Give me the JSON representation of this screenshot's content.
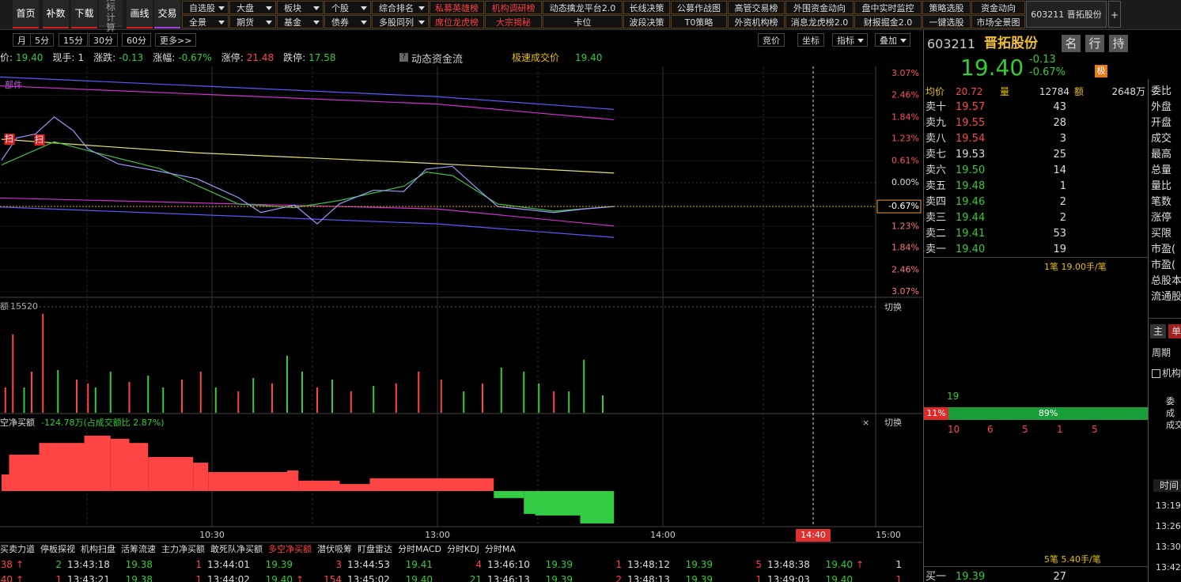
{
  "toolbar": {
    "buttons": [
      "首页",
      "补数",
      "下载",
      "指标计算",
      "画线",
      "交易"
    ],
    "menu_row1": [
      {
        "text": "自选股",
        "dropdown": true,
        "color": "#ddd"
      },
      {
        "text": "大盘",
        "dropdown": true,
        "color": "#ddd"
      },
      {
        "text": "板块",
        "dropdown": true,
        "color": "#ddd"
      },
      {
        "text": "个股",
        "dropdown": true,
        "color": "#ddd"
      },
      {
        "text": "综合排名",
        "dropdown": true,
        "color": "#ddd"
      },
      {
        "text": "私募英雄榜",
        "dropdown": false,
        "color": "#ff4040"
      },
      {
        "text": "机构调研榜",
        "dropdown": false,
        "color": "#ff4040"
      },
      {
        "text": "动态擒龙平台2.0",
        "dropdown": false,
        "color": "#ddd"
      },
      {
        "text": "长线决策",
        "dropdown": false,
        "color": "#ddd"
      },
      {
        "text": "公募作战图",
        "dropdown": false,
        "color": "#ddd"
      },
      {
        "text": "高管交易榜",
        "dropdown": false,
        "color": "#ddd"
      },
      {
        "text": "外围资金动向",
        "dropdown": false,
        "color": "#ddd"
      },
      {
        "text": "盘中实时监控",
        "dropdown": false,
        "color": "#ddd"
      },
      {
        "text": "策略选股",
        "dropdown": false,
        "color": "#ddd"
      },
      {
        "text": "资金动向",
        "dropdown": false,
        "color": "#ddd"
      }
    ],
    "menu_row2": [
      {
        "text": "全景",
        "dropdown": true,
        "color": "#ddd"
      },
      {
        "text": "期货",
        "dropdown": true,
        "color": "#ddd"
      },
      {
        "text": "基金",
        "dropdown": true,
        "color": "#ddd"
      },
      {
        "text": "债券",
        "dropdown": true,
        "color": "#ddd"
      },
      {
        "text": "多股同列",
        "dropdown": true,
        "color": "#ddd"
      },
      {
        "text": "席位龙虎榜",
        "dropdown": false,
        "color": "#ff4040"
      },
      {
        "text": "大宗揭秘",
        "dropdown": false,
        "color": "#ff4040"
      },
      {
        "text": "卡位",
        "dropdown": false,
        "color": "#ddd"
      },
      {
        "text": "波段决策",
        "dropdown": false,
        "color": "#ddd"
      },
      {
        "text": "T0策略",
        "dropdown": false,
        "color": "#ddd"
      },
      {
        "text": "外资机构榜",
        "dropdown": false,
        "color": "#ddd"
      },
      {
        "text": "消息龙虎榜2.0",
        "dropdown": false,
        "color": "#ddd"
      },
      {
        "text": "财报掘金2.0",
        "dropdown": false,
        "color": "#ddd"
      },
      {
        "text": "一键选股",
        "dropdown": false,
        "color": "#ddd"
      },
      {
        "text": "市场全景图",
        "dropdown": false,
        "color": "#ddd"
      }
    ],
    "stock_tab": "603211 晋拓股份",
    "add": "+"
  },
  "periods": [
    "月",
    "5分",
    "15分",
    "30分",
    "60分",
    "更多>>"
  ],
  "chart_tools": [
    "竞价",
    "坐标",
    "指标",
    "叠加"
  ],
  "info": {
    "items": [
      {
        "label": "价:",
        "value": "19.40",
        "color": "#33cc33"
      },
      {
        "label": "现手:",
        "value": "1",
        "color": "#dddddd"
      },
      {
        "label": "涨跌:",
        "value": "-0.13",
        "color": "#33cc33"
      },
      {
        "label": "涨幅:",
        "value": "-0.67%",
        "color": "#33cc33"
      },
      {
        "label": "涨停:",
        "value": "21.48",
        "color": "#ff4444"
      },
      {
        "label": "跌停:",
        "value": "17.58",
        "color": "#33cc33"
      }
    ],
    "fund_flow": "动态资金流",
    "fast_label": "极速成交价",
    "fast_value": "19.40"
  },
  "chart_data": [
    {
      "type": "line",
      "label": "部件",
      "xlim": [
        0,
        240
      ],
      "ylim": [
        -3.07,
        3.07
      ],
      "xticks": [
        {
          "value": 60,
          "label": "10:30"
        },
        {
          "value": 120,
          "label": "13:00"
        },
        {
          "value": 180,
          "label": "14:00"
        },
        {
          "value": 240,
          "label": "15:00"
        }
      ],
      "cursor": {
        "value": 220,
        "label": "14:40"
      },
      "yticks": [
        {
          "value": 3.07,
          "label": "3.07%"
        },
        {
          "value": 2.46,
          "label": "2.46%"
        },
        {
          "value": 1.84,
          "label": "1.84%"
        },
        {
          "value": 1.23,
          "label": "1.23%"
        },
        {
          "value": 0.61,
          "label": "0.61%"
        },
        {
          "value": 0,
          "label": "0.00%"
        },
        {
          "value": -1.23,
          "label": "1.23%"
        },
        {
          "value": -1.84,
          "label": "1.84%"
        },
        {
          "value": -2.46,
          "label": "2.46%"
        },
        {
          "value": -3.07,
          "label": "3.07%"
        }
      ],
      "current": {
        "value": -0.67,
        "label": "-0.67%"
      },
      "series": [
        {
          "color": "#5a5aff",
          "x": [
            0,
            120,
            167
          ],
          "values": [
            2.99,
            2.42,
            2.06
          ]
        },
        {
          "color": "#d030d0",
          "x": [
            0,
            120,
            167
          ],
          "values": [
            2.74,
            2.21,
            1.77
          ]
        },
        {
          "color": "#d030d0",
          "x": [
            0,
            120,
            167
          ],
          "values": [
            -0.42,
            -0.74,
            -1.22
          ]
        },
        {
          "color": "#5a5aff",
          "x": [
            0,
            120,
            167
          ],
          "values": [
            -0.67,
            -1.16,
            -1.54
          ]
        },
        {
          "color": "#e8e070",
          "x": [
            4,
            56,
            117,
            167
          ],
          "values": [
            1.22,
            0.84,
            0.55,
            0.27
          ]
        },
        {
          "color": "#40c040",
          "x": [
            4,
            18,
            27,
            46,
            67,
            82,
            94,
            111,
            117,
            124,
            136,
            151,
            167
          ],
          "values": [
            0.5,
            1.15,
            0.9,
            0.4,
            -0.6,
            -0.7,
            -0.5,
            -0.1,
            0.3,
            0.2,
            -0.6,
            -0.8,
            -0.67
          ]
        },
        {
          "color": "#9a9aff",
          "x": [
            4,
            8,
            13,
            18,
            23,
            27,
            35,
            46,
            56,
            67,
            73,
            82,
            88,
            94,
            103,
            111,
            117,
            124,
            130,
            136,
            151,
            159,
            167
          ],
          "values": [
            0.63,
            1.26,
            1.37,
            1.85,
            1.47,
            0.95,
            0.53,
            0.32,
            0.11,
            -0.42,
            -0.84,
            -0.63,
            -1.16,
            -0.59,
            -0.21,
            -0.25,
            0.38,
            0.46,
            -0.11,
            -0.67,
            -0.84,
            -0.74,
            -0.67
          ]
        }
      ],
      "markers": [
        {
          "x": 6,
          "value": 1.22,
          "label": "扫"
        },
        {
          "x": 14,
          "value": 1.2,
          "label": "扫"
        }
      ]
    },
    {
      "type": "bar",
      "label": "额",
      "switch": "切换",
      "ylim": [
        0,
        15520
      ],
      "yticks": [
        15520
      ],
      "x": [
        5,
        7,
        10,
        12,
        15,
        19,
        24,
        27,
        29,
        33,
        38,
        43,
        47,
        52,
        57,
        61,
        67,
        71,
        76,
        80,
        84,
        88,
        92,
        97,
        103,
        109,
        115,
        121,
        127,
        132,
        137,
        143,
        147,
        151,
        155,
        159,
        164
      ],
      "values": [
        3712,
        11484,
        3712,
        6032,
        14500,
        6264,
        4872,
        4292,
        3712,
        6032,
        4524,
        5452,
        3712,
        4872,
        6032,
        3712,
        3132,
        5104,
        4292,
        8352,
        6032,
        3712,
        4872,
        3132,
        3944,
        4292,
        6032,
        4872,
        3132,
        4292,
        6612,
        6032,
        4292,
        3132,
        3132,
        7772,
        2552
      ],
      "colors": [
        "#ff4444",
        "#ff4444",
        "#33cc44",
        "#ff4444",
        "#ff4444",
        "#33cc44",
        "#ff4444",
        "#ff4444",
        "#33cc44",
        "#33cc44",
        "#ff4444",
        "#33cc44",
        "#33cc44",
        "#ff4444",
        "#ff4444",
        "#33cc44",
        "#ff4444",
        "#33cc44",
        "#ff4444",
        "#33cc44",
        "#33cc44",
        "#ff4444",
        "#33cc44",
        "#ff4444",
        "#33cc44",
        "#ff4444",
        "#ff4444",
        "#ff4444",
        "#33cc44",
        "#ff4444",
        "#33cc44",
        "#33cc44",
        "#33cc44",
        "#ff4444",
        "#33cc44",
        "#33cc44",
        "#33cc44"
      ]
    },
    {
      "type": "histogram",
      "title": "空净买额",
      "value_label": "-124.78万",
      "ratio_label": "(占成交额比 2.87%)",
      "switch": "切换",
      "close": "×",
      "ylim": [
        -134,
        292
      ],
      "bins": [
        4,
        6,
        14,
        26,
        33,
        38,
        43,
        55,
        59,
        80,
        83,
        94,
        102,
        135,
        143,
        146,
        158,
        167
      ],
      "values": [
        64,
        140,
        185,
        213,
        201,
        185,
        131,
        109,
        73,
        79,
        40,
        27,
        49,
        -27,
        -88,
        -94,
        -124.78
      ],
      "up_color": "#ff4444",
      "down_color": "#33cc44"
    }
  ],
  "tabs": {
    "items": [
      "买卖力道",
      "停板探视",
      "机构扫盘",
      "活筹流速",
      "主力净买额",
      "敢死队净买额",
      "多空净买额",
      "潜伏吸筹",
      "盯盘雷达",
      "分时MACD",
      "分时KDJ",
      "分时MA"
    ],
    "selected": 6
  },
  "trades": [
    [
      {
        "time": null,
        "price": "38",
        "arrow": "↑",
        "vol": "2",
        "vol_color": "#33cc33"
      },
      {
        "time": "13:43:18",
        "price": "19.38",
        "arrow": null,
        "vol": "1",
        "vol_color": "#ff4444"
      },
      {
        "time": "13:44:01",
        "price": "19.39",
        "arrow": null,
        "vol": "3",
        "vol_color": "#ff4444"
      },
      {
        "time": "13:44:53",
        "price": "19.41",
        "arrow": null,
        "vol": "4",
        "vol_color": "#ff4444"
      },
      {
        "time": "13:46:10",
        "price": "19.39",
        "arrow": null,
        "vol": "1",
        "vol_color": "#ff4444"
      },
      {
        "time": "13:48:12",
        "price": "19.39",
        "arrow": null,
        "vol": "5",
        "vol_color": "#ff4444"
      },
      {
        "time": "13:48:38",
        "price": "19.40",
        "arrow": "↑",
        "vol": "1",
        "vol_color": "#dddddd"
      }
    ],
    [
      {
        "time": null,
        "price": "40",
        "arrow": "↑",
        "vol": "1",
        "vol_color": "#ff4444"
      },
      {
        "time": "13:43:21",
        "price": "19.38",
        "arrow": null,
        "vol": "1",
        "vol_color": "#ff4444"
      },
      {
        "time": "13:44:02",
        "price": "19.40",
        "arrow": "↑",
        "vol": "154",
        "vol_color": "#ff4444"
      },
      {
        "time": "13:45:02",
        "price": "19.40",
        "arrow": null,
        "vol": "21",
        "vol_color": "#33cc33"
      },
      {
        "time": "13:46:13",
        "price": "19.39",
        "arrow": null,
        "vol": "2",
        "vol_color": "#ff4444"
      },
      {
        "time": "13:48:13",
        "price": "19.39",
        "arrow": null,
        "vol": "1",
        "vol_color": "#ff4444"
      },
      {
        "time": "13:49:03",
        "price": "19.40",
        "arrow": null,
        "vol": "1",
        "vol_color": "#ff4444"
      }
    ]
  ],
  "quote": {
    "code": "603211",
    "name": "晋拓股份",
    "tags": [
      "名",
      "行",
      "持"
    ],
    "price": "19.40",
    "change": "-0.13",
    "pct": "-0.67%",
    "badge": "极",
    "stats": [
      {
        "label": "均价",
        "value": "20.72",
        "color": "#ff4444"
      },
      {
        "label": "量",
        "value": "12784",
        "color": "#dddddd"
      },
      {
        "label": "额",
        "value": "2648万",
        "color": "#dddddd"
      }
    ],
    "asks": [
      {
        "label": "卖十",
        "price": "19.57",
        "vol": "43",
        "color": "#ff4444"
      },
      {
        "label": "卖九",
        "price": "19.55",
        "vol": "28",
        "color": "#ff4444"
      },
      {
        "label": "卖八",
        "price": "19.54",
        "vol": "3",
        "color": "#ff4444"
      },
      {
        "label": "卖七",
        "price": "19.53",
        "vol": "25",
        "color": "#dddddd"
      },
      {
        "label": "卖六",
        "price": "19.50",
        "vol": "14",
        "color": "#33cc33"
      },
      {
        "label": "卖五",
        "price": "19.48",
        "vol": "1",
        "color": "#33cc33"
      },
      {
        "label": "卖四",
        "price": "19.46",
        "vol": "2",
        "color": "#33cc33"
      },
      {
        "label": "卖三",
        "price": "19.44",
        "vol": "2",
        "color": "#33cc33"
      },
      {
        "label": "卖二",
        "price": "19.41",
        "vol": "53",
        "color": "#33cc33"
      },
      {
        "label": "卖一",
        "price": "19.40",
        "vol": "19",
        "color": "#33cc33"
      }
    ],
    "ask_summary": "1笔 19.00手/笔",
    "mid_value": "19",
    "ratio": [
      {
        "value": 11,
        "label": "11%",
        "color": "#e02828"
      },
      {
        "value": 89,
        "label": "89%",
        "color": "#1a9e3a"
      }
    ],
    "counts": [
      "10",
      "6",
      "5",
      "1",
      "5"
    ],
    "bid_summary": "5笔 5.40手/笔",
    "bids": [
      {
        "label": "买一",
        "price": "19.39",
        "vol": "27",
        "color": "#33cc33"
      }
    ]
  },
  "side": {
    "labels": [
      "委比",
      "外盘",
      "开盘",
      "成交",
      "最高",
      "总量",
      "量比",
      "笔数",
      "涨停",
      "买限",
      "市盈(",
      "市盈(",
      "总股本",
      "流通股"
    ],
    "tabs": [
      "主",
      "单"
    ],
    "period": "周期",
    "check": "机构",
    "misc": [
      "委",
      "成",
      "成交"
    ],
    "time_header": "时间",
    "times": [
      "13:19",
      "13:26",
      "13:30",
      "13:42"
    ]
  }
}
